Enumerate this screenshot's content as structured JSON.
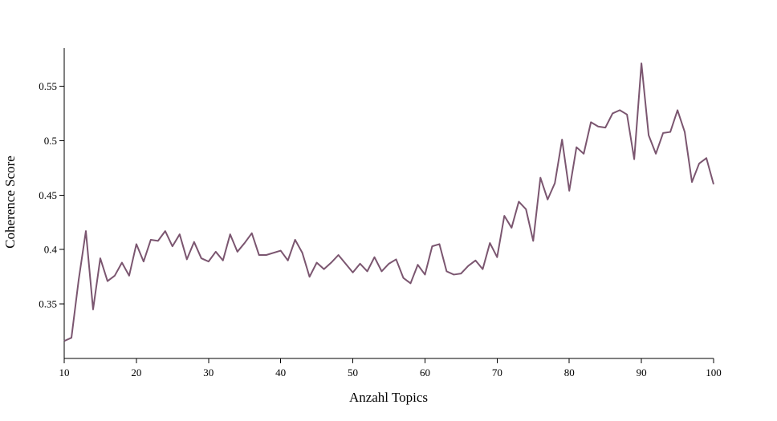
{
  "chart_data": {
    "type": "line",
    "xlabel": "Anzahl Topics",
    "ylabel": "Coherence Score",
    "xlim": [
      10,
      100
    ],
    "ylim": [
      0.3,
      0.585
    ],
    "x_ticks": [
      10,
      20,
      30,
      40,
      50,
      60,
      70,
      80,
      90,
      100
    ],
    "x_tick_labels": [
      "10",
      "20",
      "30",
      "40",
      "50",
      "60",
      "70",
      "80",
      "90",
      "100"
    ],
    "y_ticks": [
      0.35,
      0.4,
      0.45,
      0.5,
      0.55
    ],
    "y_tick_labels": [
      "0.35",
      "0.4",
      "0.45",
      "0.5",
      "0.55"
    ],
    "grid": false,
    "line_color": "#7b5670",
    "series": [
      {
        "x": [
          10,
          11,
          12,
          13,
          14,
          15,
          16,
          17,
          18,
          19,
          20,
          21,
          22,
          23,
          24,
          25,
          26,
          27,
          28,
          29,
          30,
          31,
          32,
          33,
          34,
          35,
          36,
          37,
          38,
          40,
          41,
          42,
          43,
          44,
          45,
          46,
          47,
          48,
          49,
          50,
          51,
          52,
          53,
          54,
          55,
          56,
          57,
          58,
          59,
          60,
          61,
          62,
          63,
          64,
          65,
          66,
          67,
          68,
          69,
          70,
          71,
          72,
          73,
          74,
          75,
          76,
          77,
          78,
          79,
          80,
          81,
          82,
          83,
          84,
          85,
          86,
          87,
          88,
          89,
          90,
          91,
          92,
          93,
          94,
          95,
          96,
          97,
          98,
          99,
          100
        ],
        "values": [
          0.316,
          0.319,
          0.372,
          0.417,
          0.345,
          0.392,
          0.371,
          0.376,
          0.388,
          0.376,
          0.405,
          0.389,
          0.409,
          0.408,
          0.417,
          0.403,
          0.414,
          0.391,
          0.407,
          0.392,
          0.389,
          0.398,
          0.39,
          0.414,
          0.398,
          0.406,
          0.415,
          0.395,
          0.395,
          0.399,
          0.39,
          0.409,
          0.397,
          0.375,
          0.388,
          0.382,
          0.388,
          0.395,
          0.387,
          0.379,
          0.387,
          0.38,
          0.393,
          0.38,
          0.387,
          0.391,
          0.374,
          0.369,
          0.386,
          0.377,
          0.403,
          0.405,
          0.38,
          0.377,
          0.378,
          0.385,
          0.39,
          0.382,
          0.406,
          0.393,
          0.431,
          0.42,
          0.444,
          0.437,
          0.408,
          0.466,
          0.446,
          0.461,
          0.501,
          0.454,
          0.494,
          0.488,
          0.517,
          0.513,
          0.512,
          0.525,
          0.528,
          0.524,
          0.483,
          0.571,
          0.505,
          0.488,
          0.507,
          0.508,
          0.528,
          0.508,
          0.462,
          0.479,
          0.484,
          0.46
        ]
      }
    ]
  }
}
